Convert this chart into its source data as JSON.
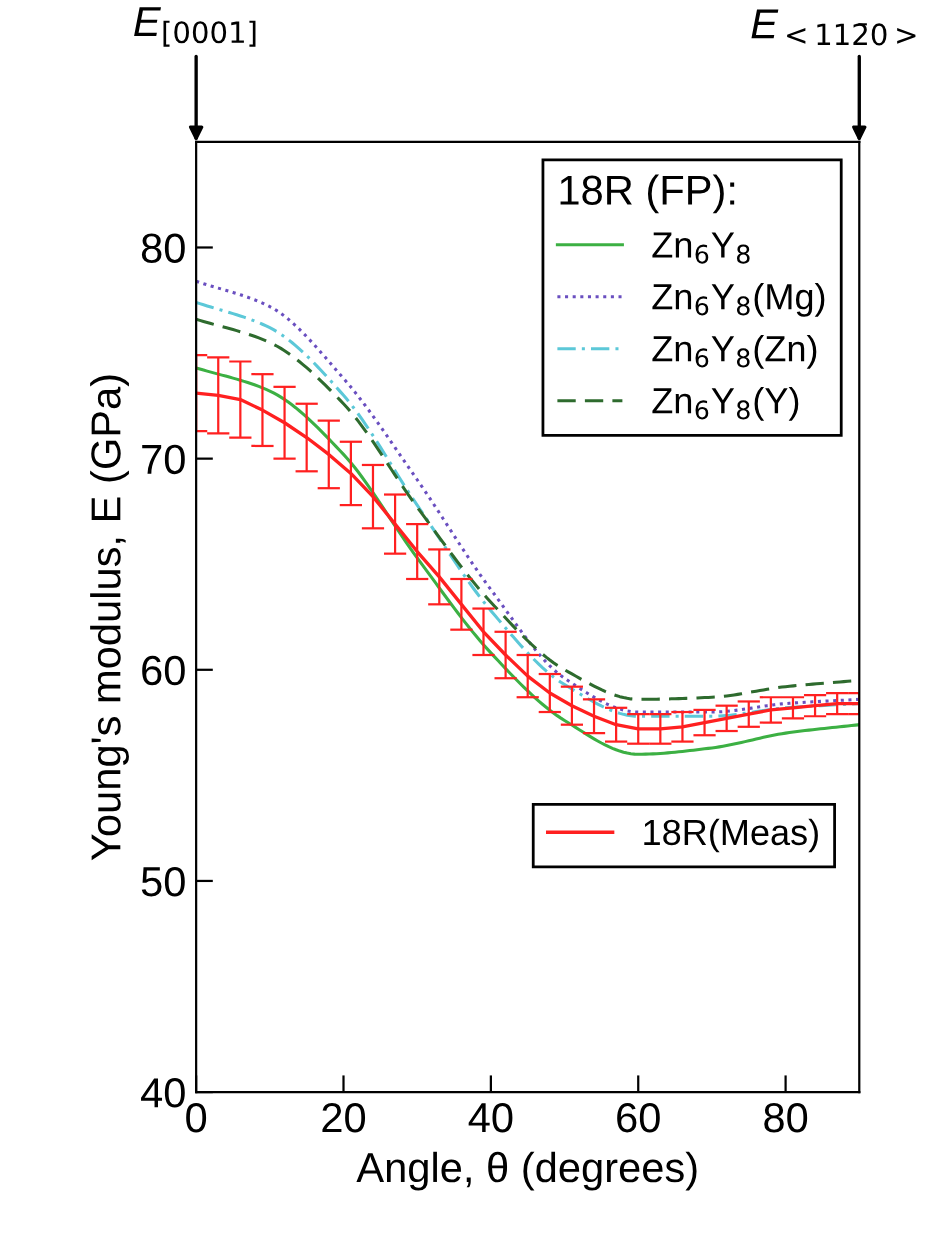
{
  "chart_data": {
    "type": "line",
    "xlabel": "Angle, θ (degrees)",
    "ylabel": "Young's modulus, E (GPa)",
    "legend_title": "18R (FP):",
    "xlim": [
      0,
      90
    ],
    "ylim": [
      40,
      85
    ],
    "xticks": [
      0,
      20,
      40,
      60,
      80
    ],
    "yticks": [
      40,
      50,
      60,
      70,
      80
    ],
    "grid": false,
    "legend": "top right",
    "x": [
      0,
      10,
      20,
      30,
      40,
      50,
      60,
      70,
      80,
      90
    ],
    "series": [
      {
        "name": "Zn$_{6}$Y$_{8}$",
        "color": "#3cb043",
        "line_style": "solid",
        "values": [
          74.3,
          73.2,
          70.2,
          65.3,
          60.8,
          57.6,
          56.0,
          56.3,
          57.0,
          57.4
        ]
      },
      {
        "name": "Zn$_{6}$Y$_{8}$(Mg)",
        "color": "#6a4fc0",
        "line_style": "dotted",
        "values": [
          78.4,
          77.2,
          73.8,
          69.0,
          63.8,
          59.6,
          58.0,
          58.0,
          58.4,
          58.6
        ]
      },
      {
        "name": "Zn$_{6}$Y$_{8}$(Zn)",
        "color": "#5cc8d8",
        "line_style": "dashdot",
        "values": [
          77.4,
          76.2,
          73.0,
          67.8,
          62.8,
          59.3,
          57.8,
          57.8,
          58.2,
          58.4
        ]
      },
      {
        "name": "Zn$_{6}$Y$_{8}$(Y)",
        "color": "#2e6b2e",
        "line_style": "dashed",
        "values": [
          76.6,
          75.5,
          72.6,
          67.7,
          63.2,
          60.0,
          58.6,
          58.7,
          59.2,
          59.5
        ]
      },
      {
        "name": "18R(Meas)",
        "color": "#ff2020",
        "line_style": "solid",
        "x": [
          0,
          3,
          6,
          9,
          12,
          15,
          18,
          21,
          24,
          27,
          30,
          33,
          36,
          39,
          42,
          45,
          48,
          51,
          54,
          57,
          60,
          63,
          66,
          69,
          72,
          75,
          78,
          81,
          84,
          87,
          90
        ],
        "values": [
          73.1,
          73.0,
          72.8,
          72.3,
          71.7,
          71.0,
          70.2,
          69.3,
          68.2,
          66.9,
          65.6,
          64.4,
          63.1,
          61.8,
          60.7,
          59.7,
          58.9,
          58.3,
          57.8,
          57.4,
          57.2,
          57.2,
          57.3,
          57.5,
          57.7,
          57.9,
          58.1,
          58.2,
          58.3,
          58.4,
          58.4
        ],
        "errors": [
          1.8,
          1.8,
          1.8,
          1.7,
          1.7,
          1.6,
          1.6,
          1.5,
          1.5,
          1.4,
          1.3,
          1.3,
          1.2,
          1.1,
          1.1,
          1.0,
          0.9,
          0.9,
          0.8,
          0.8,
          0.7,
          0.7,
          0.7,
          0.6,
          0.6,
          0.6,
          0.6,
          0.5,
          0.5,
          0.5,
          0.5
        ]
      }
    ],
    "annotations": [
      "E$_{[0001]}$",
      "E$_{<112̄0>}$"
    ]
  }
}
